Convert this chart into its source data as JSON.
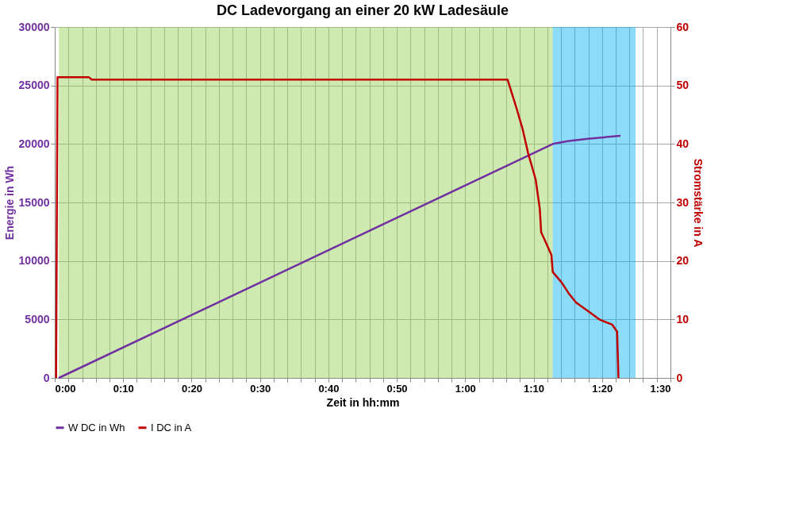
{
  "chart_data": {
    "type": "line",
    "title": "DC Ladevorgang an einer 20 kW Ladesäule",
    "xlabel": "Zeit in hh:mm",
    "ylabel": "Energie in Wh",
    "y2label": "Stromstärke in A",
    "series": [
      {
        "name": "W DC in Wh",
        "color": "#7030a0",
        "x": [
          0.01,
          0.6117,
          1.2133,
          1.25,
          1.3,
          1.3783
        ],
        "values": [
          0,
          10000,
          20000,
          20250,
          20450,
          20700
        ]
      },
      {
        "name": "I DC in A",
        "color": "#c00000",
        "axis": "y2",
        "x": [
          0.0033,
          0.0067,
          0.0833,
          0.09,
          1.1033,
          1.125,
          1.14,
          1.1533,
          1.1717,
          1.1817,
          1.185,
          1.1967,
          1.21,
          1.2133,
          1.235,
          1.2517,
          1.27,
          1.3017,
          1.3267,
          1.3583,
          1.37,
          1.3733
        ],
        "values": [
          0,
          51.4,
          51.4,
          51.0,
          51.0,
          46.1,
          42.5,
          38.4,
          33.9,
          28.9,
          24.9,
          23.1,
          21.0,
          18.1,
          16.3,
          14.5,
          12.9,
          11.3,
          10.0,
          9.1,
          7.9,
          0
        ]
      }
    ],
    "bands": [
      {
        "axis": "x",
        "from": 0.01,
        "to": 1.2133,
        "color": "#92d050"
      },
      {
        "axis": "x",
        "from": 1.2133,
        "to": 1.415,
        "color": "#00b0f0"
      }
    ],
    "xlim": [
      0,
      1.5
    ],
    "xticks": [
      {
        "value": 0,
        "label": "0:00"
      },
      {
        "value": 0.0333,
        "label": null
      },
      {
        "value": 0.0667,
        "label": null
      },
      {
        "value": 0.1,
        "label": null
      },
      {
        "value": 0.1333,
        "label": null
      },
      {
        "value": 0.1667,
        "label": "0:10"
      },
      {
        "value": 0.2,
        "label": null
      },
      {
        "value": 0.2333,
        "label": null
      },
      {
        "value": 0.2667,
        "label": null
      },
      {
        "value": 0.3,
        "label": null
      },
      {
        "value": 0.3333,
        "label": "0:20"
      },
      {
        "value": 0.3667,
        "label": null
      },
      {
        "value": 0.4,
        "label": null
      },
      {
        "value": 0.4333,
        "label": null
      },
      {
        "value": 0.4667,
        "label": null
      },
      {
        "value": 0.5,
        "label": "0:30"
      },
      {
        "value": 0.5333,
        "label": null
      },
      {
        "value": 0.5667,
        "label": null
      },
      {
        "value": 0.6,
        "label": null
      },
      {
        "value": 0.6333,
        "label": null
      },
      {
        "value": 0.6667,
        "label": "0:40"
      },
      {
        "value": 0.7,
        "label": null
      },
      {
        "value": 0.7333,
        "label": null
      },
      {
        "value": 0.7667,
        "label": null
      },
      {
        "value": 0.8,
        "label": null
      },
      {
        "value": 0.8333,
        "label": "0:50"
      },
      {
        "value": 0.8667,
        "label": null
      },
      {
        "value": 0.9,
        "label": null
      },
      {
        "value": 0.9333,
        "label": null
      },
      {
        "value": 0.9667,
        "label": null
      },
      {
        "value": 1,
        "label": "1:00"
      },
      {
        "value": 1.0333,
        "label": null
      },
      {
        "value": 1.0667,
        "label": null
      },
      {
        "value": 1.1,
        "label": null
      },
      {
        "value": 1.1333,
        "label": null
      },
      {
        "value": 1.1667,
        "label": "1:10"
      },
      {
        "value": 1.2,
        "label": null
      },
      {
        "value": 1.2333,
        "label": null
      },
      {
        "value": 1.2667,
        "label": null
      },
      {
        "value": 1.3,
        "label": null
      },
      {
        "value": 1.3333,
        "label": "1:20"
      },
      {
        "value": 1.3667,
        "label": null
      },
      {
        "value": 1.4,
        "label": null
      },
      {
        "value": 1.4333,
        "label": null
      },
      {
        "value": 1.4667,
        "label": null
      },
      {
        "value": 1.5,
        "label": "1:30"
      }
    ],
    "ylim": [
      0,
      30000
    ],
    "yticks": [
      0,
      5000,
      10000,
      15000,
      20000,
      25000,
      30000
    ],
    "y2lim": [
      0,
      60
    ],
    "y2ticks": [
      0,
      10,
      20,
      30,
      40,
      50,
      60
    ],
    "grid": true,
    "legend": "bottom",
    "marker": "none",
    "line_style": "solid"
  }
}
